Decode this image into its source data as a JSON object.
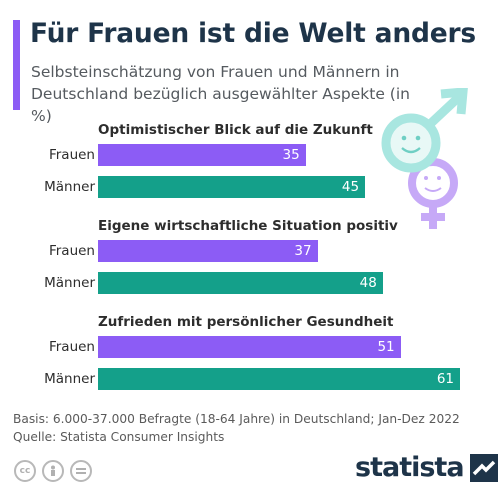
{
  "header": {
    "title": "Für Frauen ist die Welt anders",
    "subtitle": "Selbsteinschätzung von Frauen und Männern in Deutschland bezüglich ausgewählter Aspekte (in %)"
  },
  "colors": {
    "accent": "#8c5cf5",
    "frauen": "#8c5cf5",
    "maenner": "#14a08a",
    "title": "#1e3449",
    "symbol_male": "#a8e6e0",
    "symbol_female": "#c6a9f7"
  },
  "chart_data": {
    "type": "bar",
    "orientation": "horizontal",
    "groups": [
      {
        "title": "Optimistischer Blick auf die Zukunft",
        "rows": [
          {
            "label": "Frauen",
            "value": 35
          },
          {
            "label": "Männer",
            "value": 45
          }
        ]
      },
      {
        "title": "Eigene wirtschaftliche Situation positiv",
        "rows": [
          {
            "label": "Frauen",
            "value": 37
          },
          {
            "label": "Männer",
            "value": 48
          }
        ]
      },
      {
        "title": "Zufrieden mit persönlicher Gesundheit",
        "rows": [
          {
            "label": "Frauen",
            "value": 51
          },
          {
            "label": "Männer",
            "value": 61
          }
        ]
      }
    ],
    "xlim": [
      0,
      61
    ],
    "grid": false
  },
  "footer": {
    "basis": "Basis: 6.000-37.000 Befragte (18-64 Jahre) in Deutschland; Jan-Dez 2022",
    "source": "Quelle: Statista Consumer Insights",
    "brand": "statista",
    "license_icons": [
      "cc-icon",
      "person-icon",
      "equals-icon"
    ]
  }
}
